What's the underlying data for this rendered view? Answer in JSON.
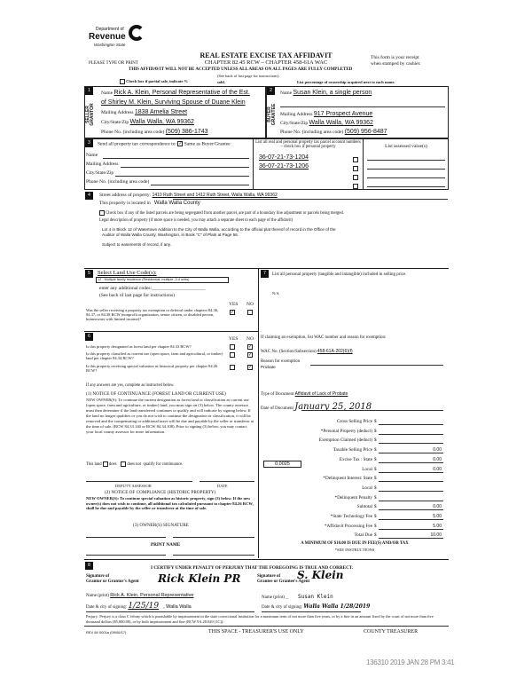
{
  "header": {
    "dept": "Department of",
    "revenue": "Revenue",
    "state": "Washington State",
    "title": "REAL ESTATE EXCISE TAX AFFIDAVIT",
    "chapter": "CHAPTER 82.45 RCW – CHAPTER 458-61A WAC",
    "type_print": "PLEASE TYPE OR PRINT",
    "receipt1": "This form is your receipt",
    "receipt2": "when stamped by cashier.",
    "warning": "THIS AFFIDAVIT WILL NOT BE ACCEPTED UNLESS ALL AREAS ON ALL PAGES ARE FULLY COMPLETED",
    "see_back": "(See back of last page for instructions)",
    "partial": "Check box if partial sale, indicate %",
    "sold": "sold.",
    "list_pct": "List percentage of ownership acquired next to each name."
  },
  "seller": {
    "num": "1",
    "side": "SELLER GRANTOR",
    "name_label": "Name",
    "name1": "Rick A. Klein, Personal Representative of the Est.",
    "name2": "of Shirley M. Klein, Surviving Spouse of Duane Klein",
    "addr_label": "Mailing Address",
    "addr": "1838 Amelia Street",
    "city_label": "City/State/Zip",
    "city": "Walla Walla, WA 99362",
    "phone_label": "Phone No. (including area code)",
    "phone": "(509) 386-1743"
  },
  "buyer": {
    "num": "2",
    "side": "BUYER GRANTEE",
    "name_label": "Name",
    "name1": "Susan Klein, a single person",
    "addr_label": "Mailing Address",
    "addr": "917 Prospect Avenue",
    "city_label": "City/State/Zip",
    "city": "Walla Walla, WA 99362",
    "phone_label": "Phone No. (including area code)",
    "phone": "(509) 956-8487"
  },
  "sec3": {
    "num": "3",
    "send": "Send all property tax correspondence to:",
    "same": "Same as Buyer/Grantee",
    "name": "Name",
    "addr": "Mailing Address",
    "city": "City/State/Zip",
    "phone": "Phone No. (including area code)",
    "parcel_head": "List all real and personal property tax parcel account numbers – check box if personal property",
    "parcels": [
      "36-07-21-73-1204",
      "36-07-21-73-1206"
    ],
    "assessed_head": "List assessed value(s)"
  },
  "sec4": {
    "num": "4",
    "street_label": "Street address of property:",
    "street": "1410 Ruth Street and 1412 Ruth Street, Walla Walla, WA 99362",
    "located_label": "This property is located in",
    "county": "Walla Walla County",
    "segregate": "Check box if any of the listed parcels are being segregated from another parcel, are part of a boundary line adjustment or parcels being merged.",
    "legal_label": "Legal description of property (if more space is needed, you may attach a separate sheet to each page of the affidavit)",
    "legal1": "Lot 4 in Block 12 of Watertown Addition to the City of Walla Walla, according to the official plat thereof of record in the Office of the",
    "legal2": "Auditor of Walla Walla County, Washington, in Book \"C\" of Plats at Page 56.",
    "subject": "Subject to easements of record, if any."
  },
  "sec5": {
    "num": "5",
    "title": "Select Land Use Code(s):",
    "code": "12 - Multiple family residence (Residential, multiple, 2-4 units)",
    "additional": "enter any additional codes:",
    "see_back": "(See back of last page for instructions)",
    "yes": "YES",
    "no": "NO",
    "q": "Was the seller receiving a property tax exemption or deferral under chapters 84.36, 84.37, or 84.38 RCW (nonprofit organization, senior citizen, or disabled person, homeowner with limited income)?"
  },
  "sec6": {
    "num": "6",
    "yes": "YES",
    "no": "NO",
    "q1": "Is this property designated as forest land per chapter 84.33 RCW?",
    "q2": "Is this property classified as current use (open space, farm and agricultural, or timber) land per chapter 84.34 RCW?",
    "q3": "Is this property receiving special valuation as historical property per chapter 84.26 RCW?",
    "if_yes": "If any answers are yes, complete as instructed below.",
    "n1_title": "(1) NOTICE OF CONTINUANCE (FOREST LAND OR CURRENT USE)",
    "n1_body": "NEW OWNER(S): To continue the current designation as forest land or classification as current use (open space, farm and agriculture, or timber) land, you must sign on (3) below. The county assessor must then determine if the land transferred continues to qualify and will indicate by signing below. If the land no longer qualifies or you do not wish to continue the designation or classification, it will be removed and the compensating or additional taxes will be due and payable by the seller or transferor at the time of sale. (RCW 84.33.140 or RCW 84.34.108). Prior to signing (3) below, you may contact your local county assessor for more information.",
    "this_land": "This land",
    "does": "does",
    "does_not": "does not",
    "qualify": "qualify for continuance.",
    "deputy": "DEPUTY ASSESSOR",
    "date": "DATE",
    "n2_title": "(2) NOTICE OF COMPLIANCE (HISTORIC PROPERTY)",
    "n2_body": "NEW OWNER(S): To continue special valuation as historic property, sign (3) below. If the new owner(s) does not wish to continue, all additional tax calculated pursuant to chapter 84.26 RCW, shall be due and payable by the seller or transferor at the time of sale.",
    "n3_title": "(3) OWNER(S) SIGNATURE",
    "print_name": "PRINT NAME"
  },
  "sec7": {
    "num": "7",
    "text": "List all personal property (tangible and intangible) included in selling price.",
    "value": "N/A",
    "exempt_head": "If claiming an exemption, list WAC number and reason for exemption:",
    "wac_label": "WAC No. (Section/Subsection)",
    "wac": "458-61A-202(6)(f)",
    "reason_label": "Reason for exemption",
    "reason": "Probate",
    "doc_type_label": "Type of Document",
    "doc_type": "Affidavit of Lack of Probate",
    "doc_date_label": "Date of Document",
    "doc_date": "January 25, 2018",
    "fees": [
      {
        "label": "Gross Selling Price",
        "value": ""
      },
      {
        "label": "*Personal Property (deduct)",
        "value": ""
      },
      {
        "label": "Exemption Claimed (deduct)",
        "value": ""
      },
      {
        "label": "Taxable Selling Price",
        "value": "0.00"
      },
      {
        "label": "Excise Tax : State",
        "value": "0.00"
      },
      {
        "label": "Local",
        "value": "0.00"
      },
      {
        "label": "*Delinquent Interest: State",
        "value": ""
      },
      {
        "label": "Local",
        "value": ""
      },
      {
        "label": "*Delinquent Penalty",
        "value": ""
      },
      {
        "label": "Subtotal",
        "value": "0.00"
      },
      {
        "label": "*State Technology Fee",
        "value": "5.00"
      },
      {
        "label": "*Affidavit Processing Fee",
        "value": "5.00"
      },
      {
        "label": "Total Due",
        "value": "10.00"
      }
    ],
    "local_rate": "0.0025",
    "minimum": "A MINIMUM OF $10.00 IS DUE IN FEE(S) AND/OR TAX",
    "see_instr": "*SEE INSTRUCTIONS"
  },
  "sec8": {
    "num": "8",
    "certify": "I CERTIFY UNDER PENALTY OF PERJURY THAT THE FOREGOING IS TRUE AND CORRECT.",
    "sig_grantor_label1": "Signature of",
    "sig_grantor_label2": "Grantor or Grantor's Agent",
    "sig_grantor": "Rick Klein PR",
    "sig_grantee_label1": "Signature of",
    "sig_grantee_label2": "Grantee or Grantee's Agent",
    "sig_grantee": "S. Klein",
    "name_label": "Name (print)",
    "grantor_name": "Rick A. Klein, Personal Representative",
    "grantee_name": "Susan Klein",
    "date_label": "Date & city of signing:",
    "grantor_date": "1/25/19",
    "grantor_city": ", Walla Walla",
    "grantee_date": "Walla Walla 1/28/2019",
    "perjury": "Perjury: Perjury is a class C felony which is punishable by imprisonment in the state correctional institution for a maximum term of not more than five years, or by a fine in an amount fixed by the court of not more than five thousand dollars ($5,000.00), or by both imprisonment and fine (RCW 9A.20.020 (1C))."
  },
  "footer": {
    "rev": "REV 84 0001a (09/06/17)",
    "treasurer_space": "THIS SPACE - TREASURER'S USE ONLY",
    "county_treasurer": "COUNTY TREASURER",
    "stamp": "136310 2019 JAN 28 PM 3:41"
  }
}
